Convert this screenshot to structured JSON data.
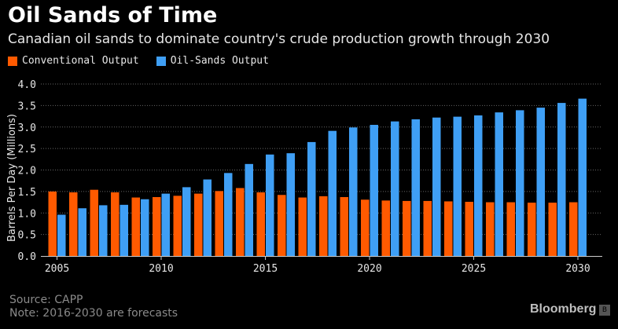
{
  "header": {
    "title": "Oil Sands of Time",
    "subtitle": "Canadian oil sands to dominate country's crude production growth through 2030"
  },
  "footer": {
    "source": "Source: CAPP",
    "note": "Note: 2016-2030 are forecasts",
    "brand": "Bloomberg",
    "brand_icon": "bloomberg-terminal-icon"
  },
  "colors": {
    "background": "#000000",
    "conventional": "#ff5a00",
    "oil_sands": "#3f9ff5",
    "grid": "#666666",
    "text": "#e6e6e6"
  },
  "chart_data": {
    "type": "bar",
    "ylabel": "Barrels Per Day (Millions)",
    "xlabel": "",
    "ylim": [
      0,
      4.0
    ],
    "yticks": [
      "0.0",
      "0.5",
      "1.0",
      "1.5",
      "2.0",
      "2.5",
      "3.0",
      "3.5",
      "4.0"
    ],
    "xtick_labels": [
      "2005",
      "2010",
      "2015",
      "2020",
      "2025",
      "2030"
    ],
    "grid": "horizontal dotted",
    "legend_position": "top-left",
    "categories": [
      "2005",
      "2006",
      "2007",
      "2008",
      "2009",
      "2010",
      "2011",
      "2012",
      "2013",
      "2014",
      "2015",
      "2016",
      "2017",
      "2018",
      "2019",
      "2020",
      "2021",
      "2022",
      "2023",
      "2024",
      "2025",
      "2026",
      "2027",
      "2028",
      "2029",
      "2030"
    ],
    "series": [
      {
        "name": "Conventional Output",
        "color": "#ff5a00",
        "values": [
          1.5,
          1.48,
          1.54,
          1.48,
          1.36,
          1.37,
          1.4,
          1.45,
          1.51,
          1.58,
          1.48,
          1.42,
          1.36,
          1.39,
          1.37,
          1.31,
          1.29,
          1.28,
          1.28,
          1.27,
          1.26,
          1.25,
          1.25,
          1.24,
          1.24,
          1.25
        ]
      },
      {
        "name": "Oil-Sands Output",
        "color": "#3f9ff5",
        "values": [
          0.96,
          1.11,
          1.18,
          1.19,
          1.32,
          1.45,
          1.6,
          1.78,
          1.93,
          2.14,
          2.36,
          2.39,
          2.65,
          2.91,
          2.99,
          3.05,
          3.13,
          3.18,
          3.22,
          3.24,
          3.27,
          3.34,
          3.39,
          3.45,
          3.56,
          3.66
        ]
      }
    ]
  }
}
